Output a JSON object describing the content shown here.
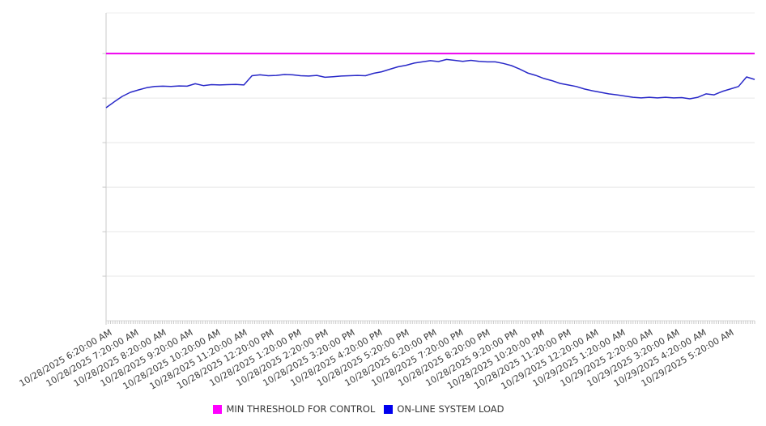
{
  "chart_data": {
    "type": "line",
    "title": "",
    "xlabel": "",
    "ylabel": "",
    "x_axis": {
      "tick_labels": [
        "10/28/2025 6:20:00 AM",
        "10/28/2025 7:20:00 AM",
        "10/28/2025 8:20:00 AM",
        "10/28/2025 9:20:00 AM",
        "10/28/2025 10:20:00 AM",
        "10/28/2025 11:20:00 AM",
        "10/28/2025 12:20:00 PM",
        "10/28/2025 1:20:00 PM",
        "10/28/2025 2:20:00 PM",
        "10/28/2025 3:20:00 PM",
        "10/28/2025 4:20:00 PM",
        "10/28/2025 5:20:00 PM",
        "10/28/2025 6:20:00 PM",
        "10/28/2025 7:20:00 PM",
        "10/28/2025 8:20:00 PM",
        "10/28/2025 9:20:00 PM",
        "10/28/2025 10:20:00 PM",
        "10/28/2025 11:20:00 PM",
        "10/29/2025 12:20:00 AM",
        "10/29/2025 1:20:00 AM",
        "10/29/2025 2:20:00 AM",
        "10/29/2025 3:20:00 AM",
        "10/29/2025 4:20:00 AM",
        "10/29/2025 5:20:00 AM"
      ],
      "minor_ticks_per_hour": 12
    },
    "y_axis": {
      "labels_visible": false,
      "ylim": [
        0,
        100
      ],
      "grid_divisions": 6
    },
    "grid": "horizontal",
    "legend_position": "bottom",
    "series": [
      {
        "name": "MIN THRESHOLD FOR CONTROL",
        "type": "constant-line",
        "color": "#EE00EE",
        "value": 86.8
      },
      {
        "name": "ON-LINE SYSTEM LOAD",
        "type": "line",
        "color": "#2828C8",
        "values": [
          69.2,
          71.1,
          72.9,
          74.2,
          75.0,
          75.7,
          76.1,
          76.2,
          76.1,
          76.3,
          76.2,
          77.0,
          76.4,
          76.7,
          76.6,
          76.7,
          76.8,
          76.6,
          79.6,
          79.9,
          79.6,
          79.7,
          80.0,
          79.9,
          79.6,
          79.5,
          79.7,
          79.1,
          79.3,
          79.5,
          79.6,
          79.7,
          79.6,
          80.4,
          80.9,
          81.7,
          82.5,
          83.0,
          83.7,
          84.1,
          84.5,
          84.2,
          84.9,
          84.6,
          84.3,
          84.6,
          84.3,
          84.1,
          84.1,
          83.6,
          82.9,
          81.8,
          80.5,
          79.7,
          78.7,
          78.0,
          77.1,
          76.6,
          76.1,
          75.3,
          74.7,
          74.2,
          73.7,
          73.4,
          73.0,
          72.6,
          72.4,
          72.6,
          72.4,
          72.6,
          72.4,
          72.5,
          72.1,
          72.6,
          73.7,
          73.4,
          74.5,
          75.3,
          76.1,
          79.2,
          78.4
        ]
      }
    ]
  },
  "legend": {
    "items": [
      {
        "label": "MIN THRESHOLD FOR CONTROL",
        "color": "#FF00FF"
      },
      {
        "label": "ON-LINE SYSTEM LOAD",
        "color": "#0000EE"
      }
    ]
  },
  "colors": {
    "gridline": "#E7E7E7",
    "plot_top_border": "#EDEDED",
    "plot_left_border": "#C9C9C9",
    "axis_line": "#DADADA",
    "tick": "#C9C9C9",
    "label_text": "#3c3c3c"
  }
}
